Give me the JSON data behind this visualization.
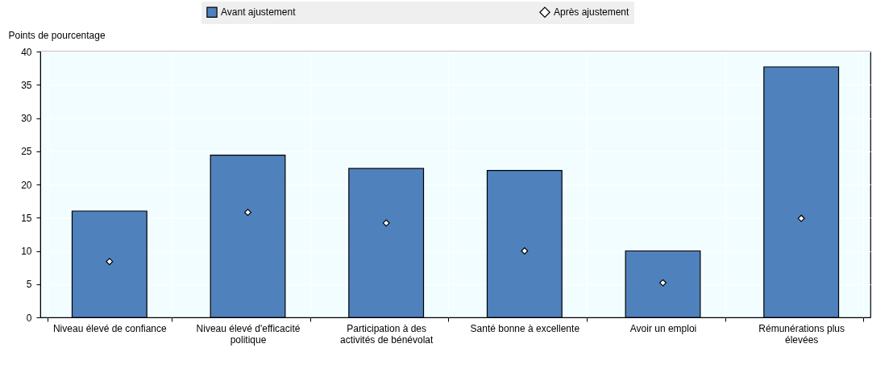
{
  "chart_data": {
    "type": "bar",
    "ylabel": "Points de pourcentage",
    "categories": [
      "Niveau élevé de confiance",
      "Niveau élevé d'efficacité politique",
      "Participation à des activités de bénévolat",
      "Santé bonne à excellente",
      "Avoir un emploi",
      "Rémunérations plus élevées"
    ],
    "series": [
      {
        "name": "Avant ajustement",
        "color": "#4f81bd",
        "values": [
          16.0,
          24.4,
          22.4,
          22.1,
          10.0,
          37.7
        ]
      },
      {
        "name": "Après ajustement",
        "type": "scatter",
        "marker": "diamond",
        "color": "#ffffff",
        "values": [
          8.4,
          15.8,
          14.2,
          10.0,
          5.2,
          14.9
        ]
      }
    ],
    "ylim": [
      0,
      40
    ],
    "yticks": [
      0,
      5,
      10,
      15,
      20,
      25,
      30,
      35,
      40
    ],
    "grid": true,
    "legend": "top"
  }
}
